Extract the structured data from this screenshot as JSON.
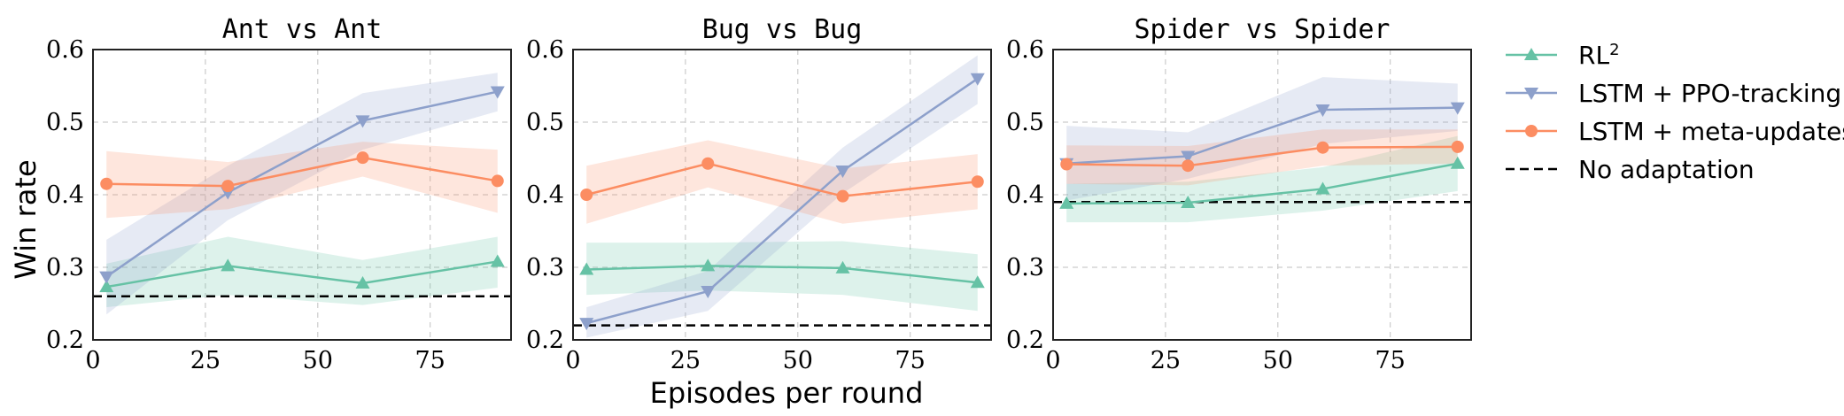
{
  "chart_data": {
    "type": "line",
    "ylabel": "Win rate",
    "xlabel": "Episodes per round",
    "x_ticks": [
      0,
      25,
      50,
      75
    ],
    "y_ticks": [
      0.2,
      0.3,
      0.4,
      0.5,
      0.6
    ],
    "xlim": [
      0,
      93
    ],
    "ylim": [
      0.2,
      0.6
    ],
    "grid": true,
    "legend_position": "right",
    "legend": [
      {
        "label": "RL",
        "sup": "2",
        "color": "#66c2a5",
        "marker": "triangle-up",
        "dashed": false
      },
      {
        "label": "LSTM + PPO-tracking",
        "sup": "",
        "color": "#8da0cb",
        "marker": "triangle-down",
        "dashed": false
      },
      {
        "label": "LSTM + meta-updates",
        "sup": "",
        "color": "#fc8d62",
        "marker": "circle",
        "dashed": false
      },
      {
        "label": "No adaptation",
        "sup": "",
        "color": "#000000",
        "marker": "none",
        "dashed": true
      }
    ],
    "panels": [
      {
        "title": "Ant vs Ant",
        "x": [
          3,
          30,
          60,
          90
        ],
        "baseline": 0.26,
        "series": [
          {
            "name": "RL2",
            "color": "#66c2a5",
            "marker": "triangle-up",
            "values": [
              0.273,
              0.302,
              0.278,
              0.308
            ],
            "lower": [
              0.245,
              0.262,
              0.248,
              0.272
            ],
            "upper": [
              0.305,
              0.342,
              0.31,
              0.342
            ]
          },
          {
            "name": "LSTM + PPO-tracking",
            "color": "#8da0cb",
            "marker": "triangle-down",
            "values": [
              0.287,
              0.403,
              0.502,
              0.542
            ],
            "lower": [
              0.235,
              0.365,
              0.462,
              0.515
            ],
            "upper": [
              0.338,
              0.44,
              0.54,
              0.568
            ]
          },
          {
            "name": "LSTM + meta-updates",
            "color": "#fc8d62",
            "marker": "circle",
            "values": [
              0.415,
              0.412,
              0.451,
              0.419
            ],
            "lower": [
              0.368,
              0.38,
              0.425,
              0.375
            ],
            "upper": [
              0.46,
              0.445,
              0.473,
              0.462
            ]
          }
        ]
      },
      {
        "title": "Bug vs Bug",
        "x": [
          3,
          30,
          60,
          90
        ],
        "baseline": 0.22,
        "series": [
          {
            "name": "RL2",
            "color": "#66c2a5",
            "marker": "triangle-up",
            "values": [
              0.297,
              0.302,
              0.299,
              0.279
            ],
            "lower": [
              0.262,
              0.268,
              0.262,
              0.24
            ],
            "upper": [
              0.334,
              0.334,
              0.336,
              0.318
            ]
          },
          {
            "name": "LSTM + PPO-tracking",
            "color": "#8da0cb",
            "marker": "triangle-down",
            "values": [
              0.223,
              0.267,
              0.433,
              0.56
            ],
            "lower": [
              0.203,
              0.24,
              0.402,
              0.525
            ],
            "upper": [
              0.245,
              0.295,
              0.465,
              0.592
            ]
          },
          {
            "name": "LSTM + meta-updates",
            "color": "#fc8d62",
            "marker": "circle",
            "values": [
              0.4,
              0.443,
              0.398,
              0.418
            ],
            "lower": [
              0.36,
              0.41,
              0.36,
              0.38
            ],
            "upper": [
              0.44,
              0.475,
              0.436,
              0.456
            ]
          }
        ]
      },
      {
        "title": "Spider vs Spider",
        "x": [
          3,
          30,
          60,
          90
        ],
        "baseline": 0.39,
        "series": [
          {
            "name": "RL2",
            "color": "#66c2a5",
            "marker": "triangle-up",
            "values": [
              0.388,
              0.389,
              0.408,
              0.443
            ],
            "lower": [
              0.362,
              0.362,
              0.378,
              0.405
            ],
            "upper": [
              0.415,
              0.418,
              0.438,
              0.481
            ]
          },
          {
            "name": "LSTM + PPO-tracking",
            "color": "#8da0cb",
            "marker": "triangle-down",
            "values": [
              0.443,
              0.453,
              0.517,
              0.52
            ],
            "lower": [
              0.392,
              0.422,
              0.47,
              0.488
            ],
            "upper": [
              0.495,
              0.486,
              0.562,
              0.553
            ]
          },
          {
            "name": "LSTM + meta-updates",
            "color": "#fc8d62",
            "marker": "circle",
            "values": [
              0.442,
              0.44,
              0.465,
              0.466
            ],
            "lower": [
              0.415,
              0.413,
              0.44,
              0.443
            ],
            "upper": [
              0.468,
              0.467,
              0.49,
              0.49
            ]
          }
        ]
      }
    ]
  }
}
